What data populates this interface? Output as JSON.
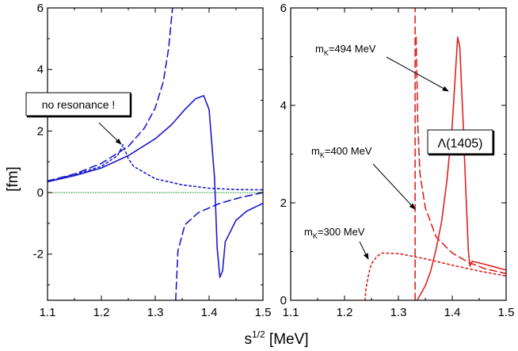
{
  "chart_data": [
    {
      "type": "line",
      "panel": "left",
      "xlim": [
        1.1,
        1.5
      ],
      "ylim": [
        -3.5,
        6
      ],
      "xticks": [
        "1.1",
        "1.2",
        "1.3",
        "1.4",
        "1.5"
      ],
      "yticks": [
        "-2",
        "0",
        "2",
        "4",
        "6"
      ],
      "ylabel": "[fm]",
      "colors": {
        "curves": "#1a1acc",
        "zero_line": "#1f8f1f"
      },
      "series": [
        {
          "style": "solid",
          "points": [
            [
              1.1,
              0.35
            ],
            [
              1.15,
              0.55
            ],
            [
              1.2,
              0.8
            ],
            [
              1.25,
              1.2
            ],
            [
              1.3,
              1.75
            ],
            [
              1.33,
              2.2
            ],
            [
              1.355,
              2.7
            ],
            [
              1.375,
              3.05
            ],
            [
              1.39,
              3.15
            ],
            [
              1.4,
              2.7
            ],
            [
              1.41,
              0.5
            ],
            [
              1.415,
              -1.8
            ],
            [
              1.42,
              -2.75
            ],
            [
              1.425,
              -2.55
            ],
            [
              1.43,
              -1.6
            ],
            [
              1.45,
              -0.9
            ],
            [
              1.47,
              -0.6
            ],
            [
              1.5,
              -0.35
            ]
          ]
        },
        {
          "style": "dashed",
          "points": [
            [
              1.1,
              0.38
            ],
            [
              1.15,
              0.6
            ],
            [
              1.2,
              0.95
            ],
            [
              1.25,
              1.5
            ],
            [
              1.28,
              2.1
            ],
            [
              1.3,
              2.75
            ],
            [
              1.315,
              3.6
            ],
            [
              1.325,
              4.7
            ],
            [
              1.332,
              6.0
            ]
          ],
          "points_b": [
            [
              1.338,
              -3.5
            ],
            [
              1.342,
              -1.9
            ],
            [
              1.355,
              -1.05
            ],
            [
              1.38,
              -0.65
            ],
            [
              1.42,
              -0.35
            ],
            [
              1.46,
              -0.15
            ],
            [
              1.5,
              0.0
            ]
          ]
        },
        {
          "style": "dotted",
          "points": [
            [
              1.1,
              0.37
            ],
            [
              1.15,
              0.58
            ],
            [
              1.2,
              0.85
            ],
            [
              1.23,
              1.2
            ],
            [
              1.24,
              1.55
            ],
            [
              1.25,
              1.1
            ],
            [
              1.26,
              0.85
            ],
            [
              1.3,
              0.45
            ],
            [
              1.35,
              0.25
            ],
            [
              1.4,
              0.14
            ],
            [
              1.45,
              0.1
            ],
            [
              1.5,
              0.09
            ]
          ]
        },
        {
          "style": "zero-line",
          "points": [
            [
              1.1,
              0.0
            ],
            [
              1.5,
              0.0
            ]
          ]
        }
      ],
      "annotations": [
        {
          "text": "no resonance !"
        }
      ]
    },
    {
      "type": "line",
      "panel": "right",
      "xlim": [
        1.1,
        1.5
      ],
      "ylim": [
        0,
        6
      ],
      "xticks": [
        "1.1",
        "1.2",
        "1.3",
        "1.4",
        "1.5"
      ],
      "yticks": [
        "0",
        "2",
        "4",
        "6"
      ],
      "colors": {
        "curves": "#e02020"
      },
      "series": [
        {
          "style": "solid",
          "points": [
            [
              1.335,
              0.0
            ],
            [
              1.35,
              0.3
            ],
            [
              1.36,
              0.6
            ],
            [
              1.37,
              1.05
            ],
            [
              1.38,
              1.6
            ],
            [
              1.39,
              2.45
            ],
            [
              1.4,
              3.6
            ],
            [
              1.405,
              4.5
            ],
            [
              1.41,
              5.4
            ],
            [
              1.414,
              5.2
            ],
            [
              1.42,
              3.7
            ],
            [
              1.425,
              2.3
            ],
            [
              1.43,
              1.0
            ],
            [
              1.433,
              0.7
            ],
            [
              1.437,
              0.8
            ],
            [
              1.445,
              0.78
            ],
            [
              1.46,
              0.74
            ],
            [
              1.48,
              0.68
            ],
            [
              1.5,
              0.62
            ]
          ]
        },
        {
          "style": "dashed",
          "points": [
            [
              1.331,
              0.0
            ],
            [
              1.331,
              6.0
            ]
          ],
          "points_b": [
            [
              1.333,
              5.4
            ],
            [
              1.336,
              3.6
            ],
            [
              1.34,
              2.6
            ],
            [
              1.35,
              1.9
            ],
            [
              1.37,
              1.3
            ],
            [
              1.4,
              0.97
            ],
            [
              1.43,
              0.78
            ],
            [
              1.46,
              0.65
            ],
            [
              1.5,
              0.55
            ]
          ]
        },
        {
          "style": "dotted",
          "points": [
            [
              1.238,
              0.0
            ],
            [
              1.24,
              0.25
            ],
            [
              1.245,
              0.55
            ],
            [
              1.25,
              0.75
            ],
            [
              1.26,
              0.9
            ],
            [
              1.27,
              0.97
            ],
            [
              1.3,
              0.96
            ],
            [
              1.35,
              0.85
            ],
            [
              1.4,
              0.72
            ],
            [
              1.45,
              0.6
            ],
            [
              1.5,
              0.5
            ]
          ]
        }
      ],
      "annotations": [
        {
          "text": "m",
          "sub": "K",
          "rest": "=494 MeV"
        },
        {
          "text": "m",
          "sub": "K",
          "rest": "=400 MeV"
        },
        {
          "text": "m",
          "sub": "K",
          "rest": "=300 MeV"
        },
        {
          "text": "Λ(1405)"
        }
      ]
    }
  ],
  "shared_xlabel": {
    "base": "s",
    "sup": "1/2",
    "rest": " [MeV]"
  }
}
